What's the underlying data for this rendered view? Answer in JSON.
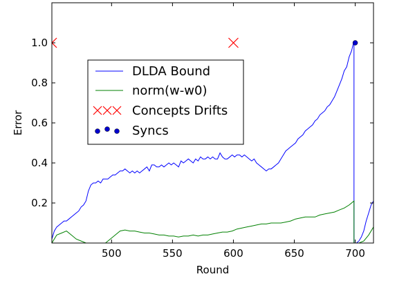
{
  "chart_data": {
    "type": "line",
    "xlabel": "Round",
    "ylabel": "Error",
    "xlim": [
      451,
      715
    ],
    "ylim": [
      0,
      1.2
    ],
    "x_ticks": [
      500,
      550,
      600,
      650,
      700
    ],
    "x_tick_labels": [
      "500",
      "550",
      "600",
      "650",
      "700"
    ],
    "y_ticks": [
      0.2,
      0.4,
      0.6,
      0.8,
      1.0
    ],
    "y_tick_labels": [
      "0.2",
      "0.4",
      "0.6",
      "0.8",
      "1.0"
    ],
    "grid": false,
    "legend_placement": "center-left",
    "series": [
      {
        "name": "DLDA Bound",
        "kind": "line",
        "color": "#0000ff",
        "x": [
          451,
          453,
          455,
          457,
          459,
          461,
          463,
          465,
          467,
          469,
          471,
          473,
          475,
          477,
          479,
          481,
          483,
          485,
          487,
          489,
          491,
          493,
          495,
          497,
          499,
          501,
          503,
          505,
          507,
          509,
          511,
          513,
          515,
          517,
          519,
          521,
          523,
          525,
          527,
          529,
          531,
          533,
          535,
          537,
          539,
          541,
          543,
          545,
          547,
          549,
          551,
          553,
          555,
          557,
          559,
          561,
          563,
          565,
          567,
          569,
          571,
          573,
          575,
          577,
          579,
          581,
          583,
          585,
          587,
          589,
          591,
          593,
          595,
          597,
          599,
          601,
          603,
          605,
          607,
          609,
          611,
          613,
          615,
          617,
          619,
          621,
          623,
          625,
          627,
          629,
          631,
          633,
          635,
          637,
          639,
          641,
          643,
          645,
          647,
          649,
          651,
          653,
          655,
          657,
          659,
          661,
          663,
          665,
          667,
          669,
          671,
          673,
          675,
          677,
          679,
          681,
          683,
          685,
          687,
          689,
          691,
          693,
          695,
          697,
          699,
          699,
          701,
          703,
          705,
          707,
          709,
          711,
          713,
          715
        ],
        "y": [
          0.02,
          0.06,
          0.08,
          0.09,
          0.1,
          0.11,
          0.11,
          0.12,
          0.13,
          0.14,
          0.15,
          0.16,
          0.18,
          0.19,
          0.21,
          0.26,
          0.29,
          0.3,
          0.3,
          0.31,
          0.3,
          0.32,
          0.32,
          0.32,
          0.33,
          0.34,
          0.34,
          0.35,
          0.36,
          0.36,
          0.37,
          0.36,
          0.35,
          0.36,
          0.35,
          0.36,
          0.35,
          0.36,
          0.37,
          0.38,
          0.36,
          0.39,
          0.39,
          0.38,
          0.38,
          0.39,
          0.38,
          0.39,
          0.4,
          0.39,
          0.4,
          0.39,
          0.38,
          0.41,
          0.4,
          0.41,
          0.42,
          0.41,
          0.4,
          0.42,
          0.41,
          0.43,
          0.42,
          0.42,
          0.43,
          0.42,
          0.43,
          0.42,
          0.42,
          0.45,
          0.43,
          0.42,
          0.42,
          0.43,
          0.44,
          0.43,
          0.44,
          0.44,
          0.43,
          0.44,
          0.43,
          0.42,
          0.41,
          0.42,
          0.4,
          0.39,
          0.38,
          0.37,
          0.36,
          0.37,
          0.37,
          0.38,
          0.39,
          0.4,
          0.42,
          0.44,
          0.46,
          0.47,
          0.48,
          0.49,
          0.5,
          0.52,
          0.53,
          0.54,
          0.56,
          0.57,
          0.58,
          0.59,
          0.61,
          0.62,
          0.64,
          0.65,
          0.66,
          0.68,
          0.69,
          0.71,
          0.73,
          0.76,
          0.79,
          0.82,
          0.86,
          0.88,
          0.93,
          0.96,
          1.01,
          0.0,
          0.0,
          0.01,
          0.03,
          0.06,
          0.11,
          0.15,
          0.19,
          0.21
        ]
      },
      {
        "name": "norm(w-w0)",
        "kind": "line",
        "color": "#008000",
        "x": [
          451,
          455,
          459,
          463,
          467,
          471,
          475,
          479,
          483,
          487,
          491,
          495,
          499,
          503,
          507,
          511,
          515,
          519,
          523,
          527,
          531,
          535,
          539,
          543,
          547,
          551,
          555,
          559,
          563,
          567,
          571,
          575,
          579,
          583,
          587,
          591,
          595,
          599,
          603,
          607,
          611,
          615,
          619,
          623,
          627,
          631,
          635,
          639,
          643,
          647,
          651,
          655,
          659,
          663,
          667,
          671,
          675,
          679,
          683,
          687,
          691,
          695,
          699,
          699,
          703,
          707,
          711,
          715
        ],
        "y": [
          0.0,
          0.04,
          0.05,
          0.06,
          0.04,
          0.02,
          0.01,
          0.0,
          0.0,
          0.0,
          0.0,
          0.0,
          0.02,
          0.04,
          0.06,
          0.065,
          0.06,
          0.06,
          0.055,
          0.05,
          0.05,
          0.045,
          0.04,
          0.04,
          0.035,
          0.035,
          0.03,
          0.035,
          0.035,
          0.04,
          0.035,
          0.04,
          0.04,
          0.045,
          0.05,
          0.055,
          0.055,
          0.06,
          0.07,
          0.075,
          0.08,
          0.085,
          0.09,
          0.095,
          0.095,
          0.1,
          0.1,
          0.1,
          0.105,
          0.11,
          0.12,
          0.125,
          0.13,
          0.13,
          0.13,
          0.14,
          0.145,
          0.15,
          0.155,
          0.165,
          0.175,
          0.19,
          0.21,
          0.0,
          0.0,
          0.01,
          0.04,
          0.08
        ]
      },
      {
        "name": "Concepts Drifts",
        "kind": "marker",
        "marker": "x",
        "color": "#ff0000",
        "x": [
          451,
          600
        ],
        "y": [
          1.0,
          1.0
        ]
      },
      {
        "name": "Syncs",
        "kind": "marker",
        "marker": "o",
        "color": "#0000cc",
        "x": [
          700
        ],
        "y": [
          1.0
        ]
      }
    ]
  }
}
